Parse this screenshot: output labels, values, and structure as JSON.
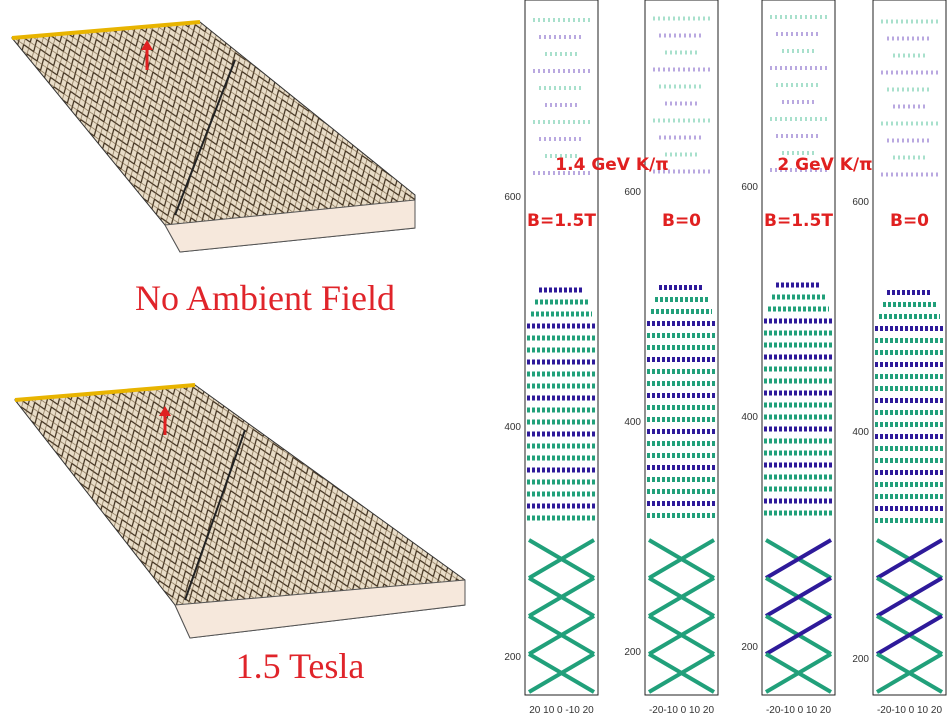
{
  "left_panels": [
    {
      "caption": "No Ambient Field"
    },
    {
      "caption": "1.5 Tesla"
    }
  ],
  "energy_labels": [
    "1.4 GeV K/π",
    "2 GeV K/π"
  ],
  "columns": [
    {
      "field_label": "B=1.5T",
      "yticks": [
        "600",
        "400",
        "200"
      ],
      "x_axis": "20 10 0 -10 20"
    },
    {
      "field_label": "B=0",
      "yticks": [
        "600",
        "400",
        "200"
      ],
      "x_axis": "-20-10 0 10 20"
    },
    {
      "field_label": "B=1.5T",
      "yticks": [
        "600",
        "400",
        "200"
      ],
      "x_axis": "-20-10 0 10 20"
    },
    {
      "field_label": "B=0",
      "yticks": [
        "600",
        "400",
        "200"
      ],
      "x_axis": "-20-10 0 10 20"
    }
  ]
}
